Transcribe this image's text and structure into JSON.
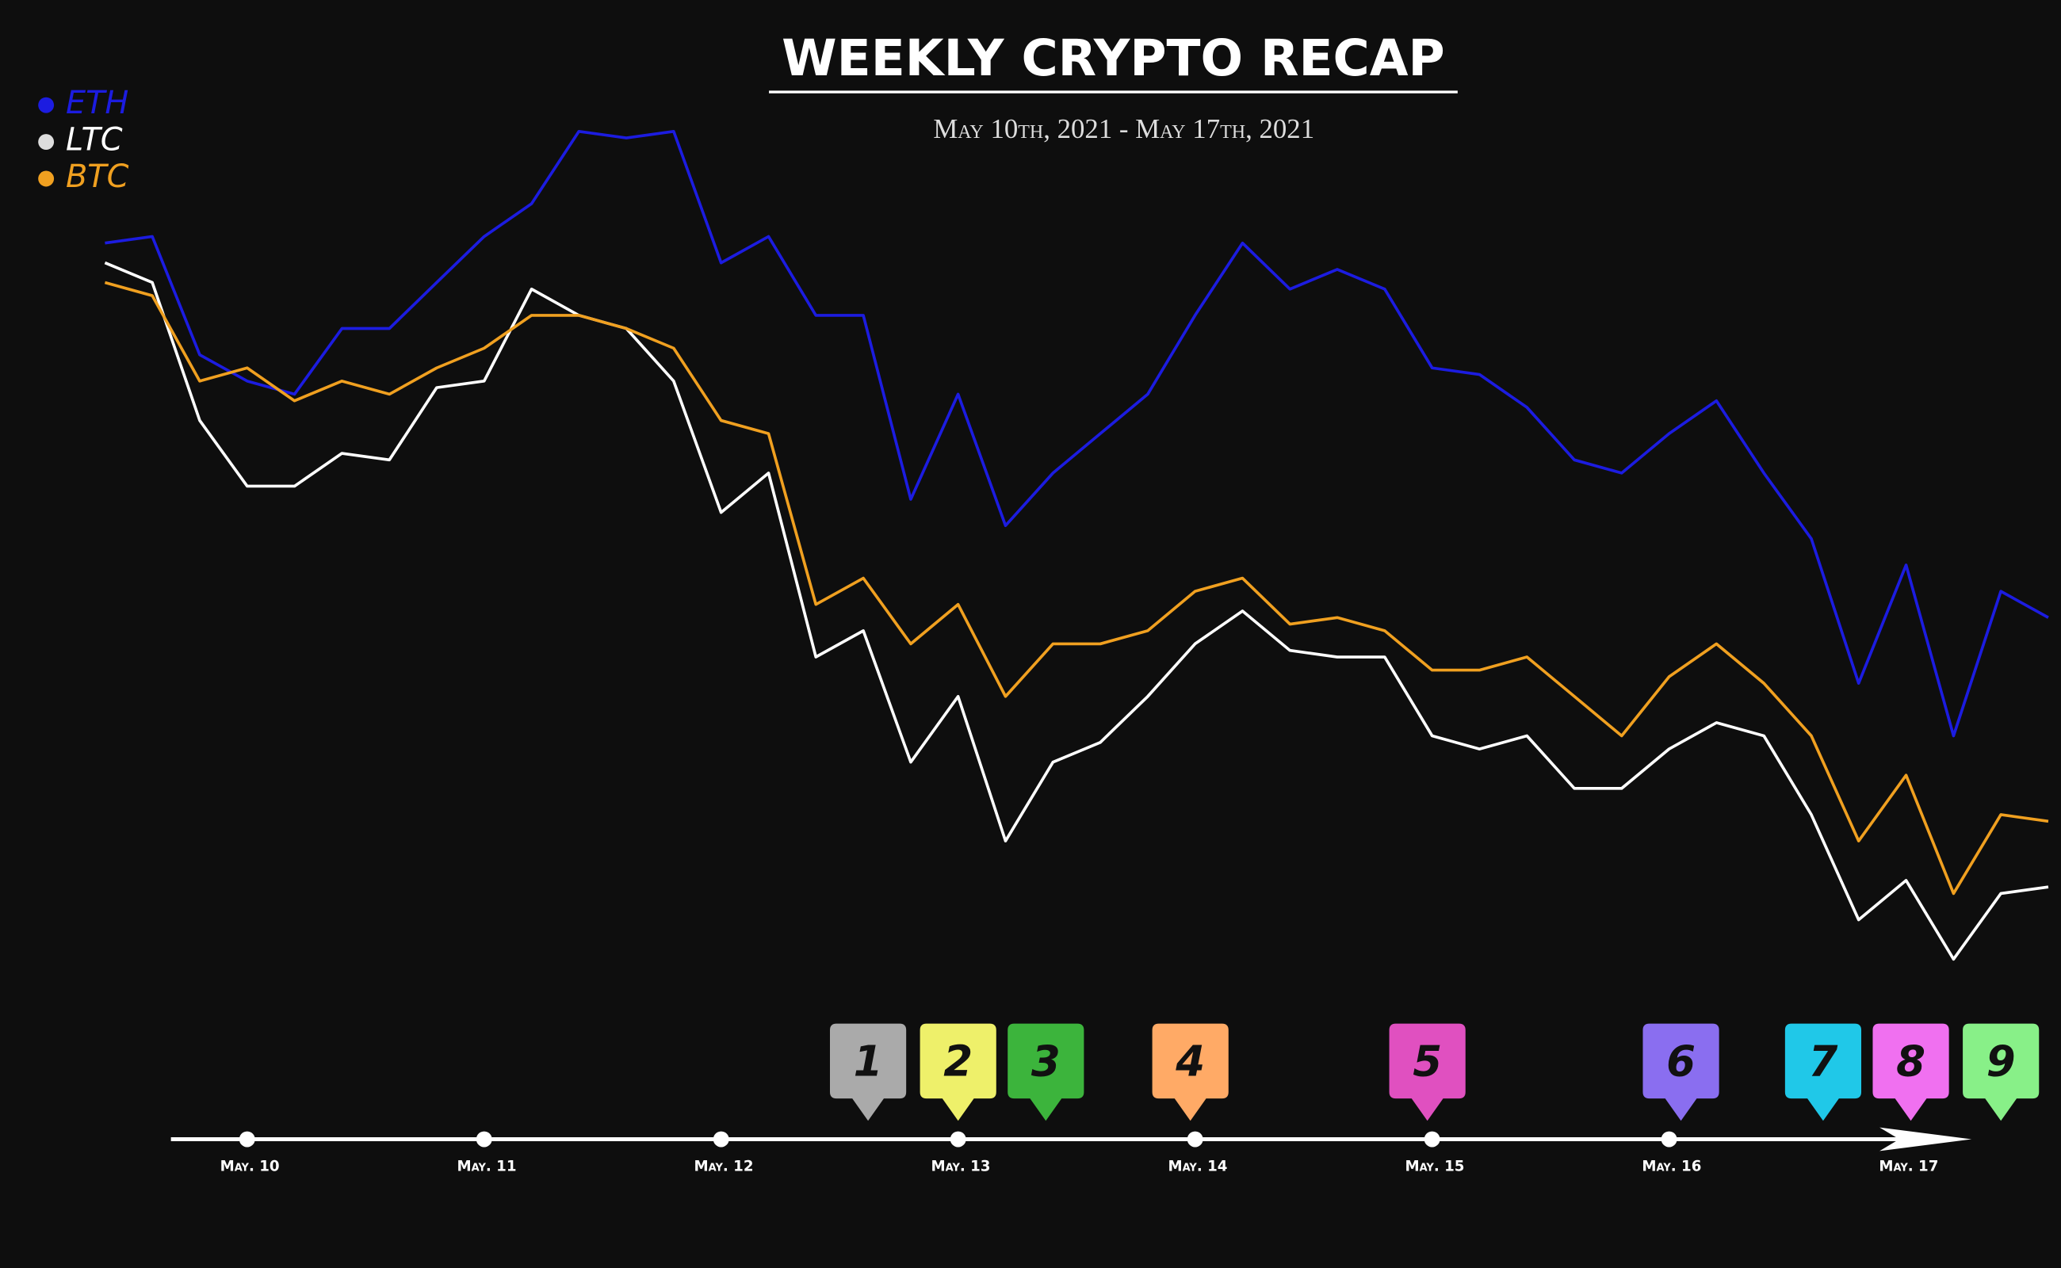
{
  "chart_data": {
    "type": "line",
    "title": "WEEKLY CRYPTO RECAP",
    "subtitle": "May 10th, 2021 - May 17th, 2021",
    "x": [
      9.4,
      9.6,
      9.8,
      10.0,
      10.2,
      10.4,
      10.6,
      10.8,
      11.0,
      11.2,
      11.4,
      11.6,
      11.8,
      12.0,
      12.2,
      12.4,
      12.6,
      12.8,
      13.0,
      13.2,
      13.4,
      13.6,
      13.8,
      14.0,
      14.2,
      14.4,
      14.6,
      14.8,
      15.0,
      15.2,
      15.4,
      15.6,
      15.8,
      16.0,
      16.2,
      16.4,
      16.6,
      16.8,
      17.0,
      17.2,
      17.4,
      17.6
    ],
    "xlim": [
      9.318,
      17.62
    ],
    "xticks": [
      {
        "value": 10,
        "label": "May. 10"
      },
      {
        "value": 11,
        "label": "May. 11"
      },
      {
        "value": 12,
        "label": "May. 12"
      },
      {
        "value": 13,
        "label": "May. 13"
      },
      {
        "value": 14,
        "label": "May. 14"
      },
      {
        "value": 15,
        "label": "May. 15"
      },
      {
        "value": 16,
        "label": "May. 16"
      },
      {
        "value": 17,
        "label": "May. 17"
      }
    ],
    "ylim": [
      0,
      80
    ],
    "series": [
      {
        "name": "ETH",
        "color": "#1c1ce0",
        "values": [
          61.5,
          62,
          53,
          51,
          50,
          55,
          55,
          58.5,
          62,
          64.5,
          70,
          69.5,
          70,
          60,
          62,
          56,
          56,
          42,
          50,
          40,
          44,
          47,
          50,
          56,
          61.5,
          58,
          59.5,
          58,
          52,
          51.5,
          49,
          45,
          44,
          47,
          49.5,
          44,
          39,
          28,
          37,
          24,
          35,
          33
        ]
      },
      {
        "name": "LTC",
        "color": "#ffffff",
        "values": [
          60,
          58.5,
          48,
          43,
          43,
          45.5,
          45,
          50.5,
          51,
          58,
          56,
          55,
          51,
          41,
          44,
          30,
          32,
          22,
          27,
          16,
          22,
          23.5,
          27,
          31,
          33.5,
          30.5,
          30,
          30,
          24,
          23,
          24,
          20,
          20,
          23,
          25,
          24,
          18,
          10,
          13,
          7,
          12,
          12.5
        ]
      },
      {
        "name": "BTC",
        "color": "#f0a020",
        "values": [
          58.5,
          57.5,
          51,
          52,
          49.5,
          51,
          50,
          52,
          53.5,
          56,
          56,
          55,
          53.5,
          48,
          47,
          34,
          36,
          31,
          34,
          27,
          31,
          31,
          32,
          35,
          36,
          32.5,
          33,
          32,
          29,
          29,
          30,
          27,
          24,
          28.5,
          31,
          28,
          24,
          16,
          21,
          12,
          18,
          17.5
        ]
      }
    ],
    "events": [
      {
        "label": "1",
        "color": "#aaaaaa",
        "x": 12.62
      },
      {
        "label": "2",
        "color": "#eef06a",
        "x": 13.0
      },
      {
        "label": "3",
        "color": "#3cb43c",
        "x": 13.37
      },
      {
        "label": "4",
        "color": "#ffaa66",
        "x": 13.98
      },
      {
        "label": "5",
        "color": "#e050c0",
        "x": 14.98
      },
      {
        "label": "6",
        "color": "#8a6ef0",
        "x": 16.05
      },
      {
        "label": "7",
        "color": "#20c8e8",
        "x": 16.65
      },
      {
        "label": "8",
        "color": "#f070f0",
        "x": 17.02
      },
      {
        "label": "9",
        "color": "#88f088",
        "x": 17.4
      }
    ]
  }
}
